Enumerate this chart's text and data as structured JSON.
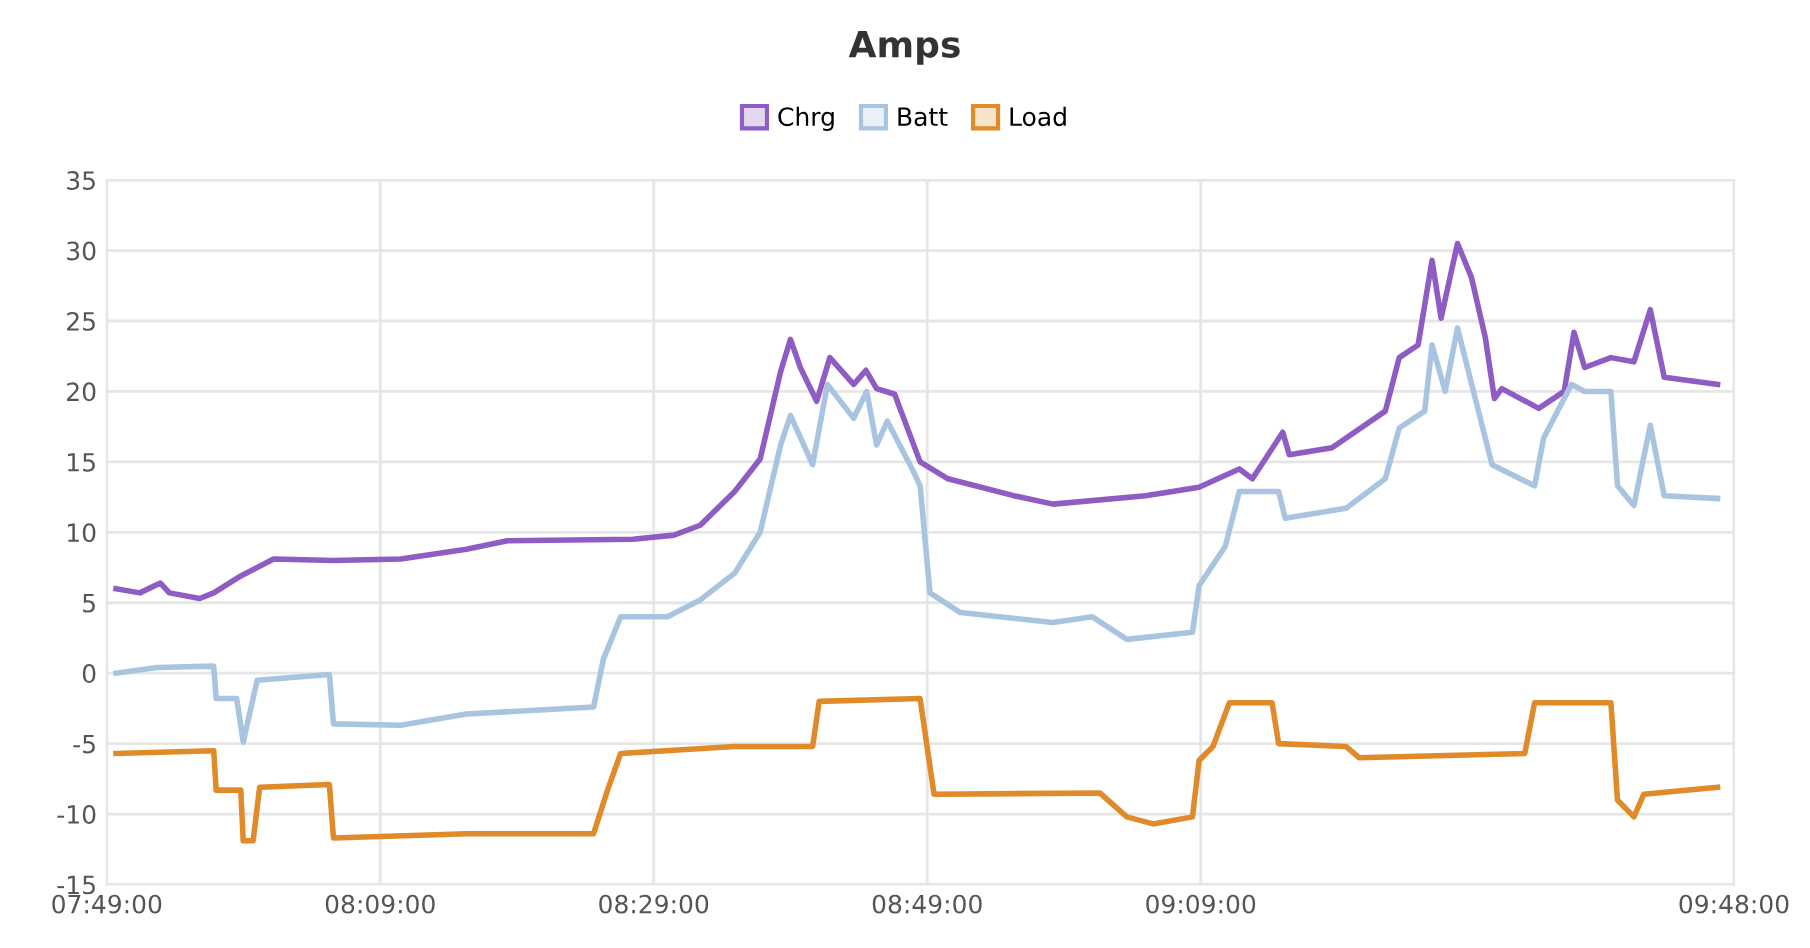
{
  "chart_data": {
    "type": "line",
    "title": "Amps",
    "xlim": [
      7.8167,
      9.8
    ],
    "xticks": [
      {
        "value": 7.8167,
        "label": "07:49:00"
      },
      {
        "value": 8.15,
        "label": "08:09:00"
      },
      {
        "value": 8.4833,
        "label": "08:29:00"
      },
      {
        "value": 8.8167,
        "label": "08:49:00"
      },
      {
        "value": 9.15,
        "label": "09:09:00"
      },
      {
        "value": 9.8,
        "label": "09:48:00"
      }
    ],
    "ylim": [
      -15,
      35
    ],
    "yticks": [
      -15,
      -10,
      -5,
      0,
      5,
      10,
      15,
      20,
      25,
      30,
      35
    ],
    "grid": true,
    "legend": "top",
    "marker": "none",
    "line_style": "solid",
    "series": [
      {
        "name": "Chrg",
        "color": "#8e5cc2",
        "x": [
          7.828,
          7.857,
          7.882,
          7.893,
          7.93,
          7.947,
          7.98,
          8.02,
          8.093,
          8.175,
          8.255,
          8.305,
          8.458,
          8.508,
          8.54,
          8.582,
          8.613,
          8.638,
          8.65,
          8.662,
          8.682,
          8.698,
          8.727,
          8.742,
          8.755,
          8.777,
          8.808,
          8.842,
          8.922,
          8.97,
          9.083,
          9.148,
          9.197,
          9.213,
          9.25,
          9.258,
          9.31,
          9.375,
          9.392,
          9.415,
          9.432,
          9.443,
          9.463,
          9.48,
          9.497,
          9.508,
          9.517,
          9.562,
          9.593,
          9.605,
          9.618,
          9.65,
          9.678,
          9.698,
          9.715,
          9.78
        ],
        "values": [
          6.0,
          5.7,
          6.4,
          5.7,
          5.3,
          5.7,
          6.9,
          8.1,
          8.0,
          8.1,
          8.8,
          9.4,
          9.5,
          9.8,
          10.5,
          12.9,
          15.2,
          21.4,
          23.7,
          21.7,
          19.3,
          22.4,
          20.5,
          21.5,
          20.2,
          19.8,
          15.0,
          13.8,
          12.6,
          12.0,
          12.6,
          13.2,
          14.5,
          13.8,
          17.1,
          15.5,
          16.0,
          18.6,
          22.4,
          23.3,
          29.3,
          25.2,
          30.5,
          28.1,
          23.8,
          19.5,
          20.2,
          18.8,
          20.0,
          24.2,
          21.7,
          22.4,
          22.1,
          25.8,
          21.0,
          20.5
        ]
      },
      {
        "name": "Batt",
        "color": "#a9c4e0",
        "x": [
          7.828,
          7.878,
          7.947,
          7.95,
          7.975,
          7.983,
          8.0,
          8.088,
          8.093,
          8.175,
          8.255,
          8.41,
          8.422,
          8.443,
          8.5,
          8.54,
          8.582,
          8.613,
          8.638,
          8.65,
          8.677,
          8.695,
          8.727,
          8.743,
          8.755,
          8.768,
          8.8,
          8.808,
          8.82,
          8.857,
          8.97,
          9.018,
          9.06,
          9.14,
          9.148,
          9.18,
          9.197,
          9.245,
          9.253,
          9.327,
          9.375,
          9.392,
          9.423,
          9.432,
          9.448,
          9.463,
          9.505,
          9.557,
          9.568,
          9.602,
          9.618,
          9.65,
          9.658,
          9.678,
          9.698,
          9.715,
          9.78
        ],
        "values": [
          0.0,
          0.4,
          0.5,
          -1.8,
          -1.8,
          -4.9,
          -0.5,
          -0.1,
          -3.6,
          -3.7,
          -2.9,
          -2.4,
          1.0,
          4.0,
          4.0,
          5.2,
          7.1,
          10.0,
          16.2,
          18.3,
          14.8,
          20.5,
          18.1,
          20.0,
          16.2,
          17.9,
          14.3,
          13.3,
          5.7,
          4.3,
          3.6,
          4.0,
          2.4,
          2.9,
          6.2,
          9.0,
          12.9,
          12.9,
          11.0,
          11.7,
          13.8,
          17.4,
          18.6,
          23.3,
          20.0,
          24.5,
          14.8,
          13.3,
          16.7,
          20.5,
          20.0,
          20.0,
          13.3,
          11.9,
          17.6,
          12.6,
          12.4
        ]
      },
      {
        "name": "Load",
        "color": "#e08a2a",
        "x": [
          7.828,
          7.947,
          7.95,
          7.98,
          7.983,
          7.995,
          8.003,
          8.088,
          8.093,
          8.255,
          8.41,
          8.427,
          8.443,
          8.582,
          8.677,
          8.685,
          8.808,
          8.825,
          9.027,
          9.06,
          9.092,
          9.14,
          9.148,
          9.165,
          9.185,
          9.237,
          9.245,
          9.327,
          9.343,
          9.545,
          9.557,
          9.65,
          9.658,
          9.678,
          9.69,
          9.78
        ],
        "values": [
          -5.7,
          -5.5,
          -8.3,
          -8.3,
          -11.9,
          -11.9,
          -8.1,
          -7.9,
          -11.7,
          -11.4,
          -11.4,
          -8.3,
          -5.7,
          -5.2,
          -5.2,
          -2.0,
          -1.8,
          -8.6,
          -8.5,
          -10.2,
          -10.7,
          -10.2,
          -6.2,
          -5.2,
          -2.1,
          -2.1,
          -5.0,
          -5.2,
          -6.0,
          -5.7,
          -2.1,
          -2.1,
          -9.0,
          -10.2,
          -8.6,
          -8.1
        ]
      }
    ]
  }
}
